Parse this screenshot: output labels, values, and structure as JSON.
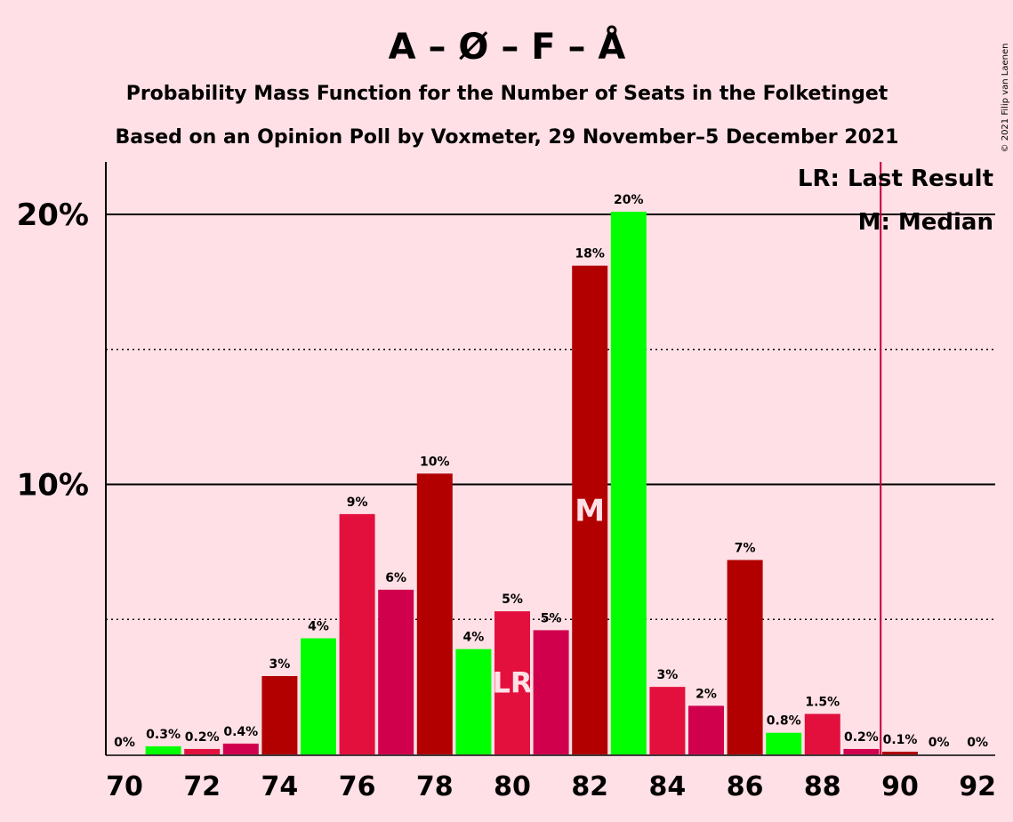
{
  "chart_data": {
    "type": "bar",
    "title": "A – Ø – F – Å",
    "subtitle": "Probability Mass Function for the Number of Seats in the Folketinget",
    "subtitle2": "Based on an Opinion Poll by Voxmeter, 29 November–5 December 2021",
    "copyright": "© 2021 Filip van Laenen",
    "x": [
      70,
      71,
      72,
      73,
      74,
      75,
      76,
      77,
      78,
      79,
      80,
      81,
      82,
      83,
      84,
      85,
      86,
      87,
      88,
      89,
      90,
      91,
      92
    ],
    "values": [
      0.0,
      0.3,
      0.2,
      0.4,
      2.9,
      4.3,
      8.9,
      6.1,
      10.4,
      3.9,
      5.3,
      4.6,
      18.1,
      20.1,
      2.5,
      1.8,
      7.2,
      0.8,
      1.5,
      0.2,
      0.1,
      0.0,
      0.0
    ],
    "value_labels": [
      "0%",
      "0.3%",
      "0.2%",
      "0.4%",
      "3%",
      "4%",
      "9%",
      "6%",
      "10%",
      "4%",
      "5%",
      "5%",
      "18%",
      "20%",
      "3%",
      "2%",
      "7%",
      "0.8%",
      "1.5%",
      "0.2%",
      "0.1%",
      "0%",
      "0%"
    ],
    "colors": [
      "#00FF00",
      "#00FF00",
      "#E3103E",
      "#D0004D",
      "#B20000",
      "#00FF00",
      "#E3103E",
      "#D0004D",
      "#B20000",
      "#00FF00",
      "#E3103E",
      "#D0004D",
      "#B20000",
      "#00FF00",
      "#E3103E",
      "#D0004D",
      "#B20000",
      "#00FF00",
      "#E3103E",
      "#D0004D",
      "#B20000",
      "#00FF00",
      "#E3103E"
    ],
    "xticks": [
      70,
      72,
      74,
      76,
      78,
      80,
      82,
      84,
      86,
      88,
      90,
      92
    ],
    "yticks": [
      {
        "value": 10,
        "label": "10%"
      },
      {
        "value": 20,
        "label": "20%"
      }
    ],
    "ygrid_dotted": [
      5,
      15
    ],
    "ylim": [
      0,
      22
    ],
    "last_result": {
      "seat": 80,
      "marker": "LR",
      "line_seat": 89.5,
      "line_color": "#C0003A"
    },
    "median": {
      "seat": 82,
      "marker": "M"
    },
    "legend": {
      "position": "top-right",
      "lr_text": "LR: Last Result",
      "m_text": "M: Median"
    }
  }
}
